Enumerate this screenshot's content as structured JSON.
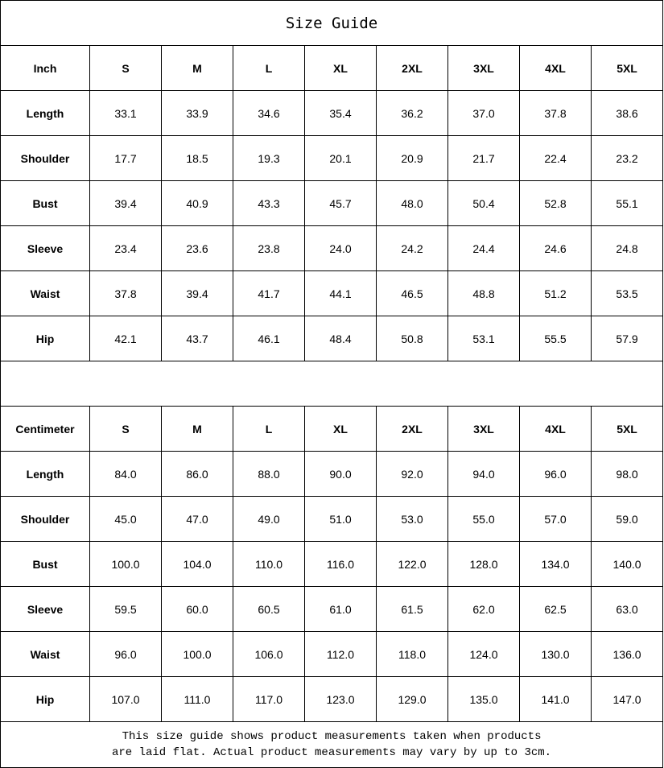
{
  "title": "Size Guide",
  "sizes": [
    "S",
    "M",
    "L",
    "XL",
    "2XL",
    "3XL",
    "4XL",
    "5XL"
  ],
  "tables": [
    {
      "unit": "Inch",
      "rows": [
        {
          "label": "Length",
          "values": [
            "33.1",
            "33.9",
            "34.6",
            "35.4",
            "36.2",
            "37.0",
            "37.8",
            "38.6"
          ]
        },
        {
          "label": "Shoulder",
          "values": [
            "17.7",
            "18.5",
            "19.3",
            "20.1",
            "20.9",
            "21.7",
            "22.4",
            "23.2"
          ]
        },
        {
          "label": "Bust",
          "values": [
            "39.4",
            "40.9",
            "43.3",
            "45.7",
            "48.0",
            "50.4",
            "52.8",
            "55.1"
          ]
        },
        {
          "label": "Sleeve",
          "values": [
            "23.4",
            "23.6",
            "23.8",
            "24.0",
            "24.2",
            "24.4",
            "24.6",
            "24.8"
          ]
        },
        {
          "label": "Waist",
          "values": [
            "37.8",
            "39.4",
            "41.7",
            "44.1",
            "46.5",
            "48.8",
            "51.2",
            "53.5"
          ]
        },
        {
          "label": "Hip",
          "values": [
            "42.1",
            "43.7",
            "46.1",
            "48.4",
            "50.8",
            "53.1",
            "55.5",
            "57.9"
          ]
        }
      ]
    },
    {
      "unit": "Centimeter",
      "rows": [
        {
          "label": "Length",
          "values": [
            "84.0",
            "86.0",
            "88.0",
            "90.0",
            "92.0",
            "94.0",
            "96.0",
            "98.0"
          ]
        },
        {
          "label": "Shoulder",
          "values": [
            "45.0",
            "47.0",
            "49.0",
            "51.0",
            "53.0",
            "55.0",
            "57.0",
            "59.0"
          ]
        },
        {
          "label": "Bust",
          "values": [
            "100.0",
            "104.0",
            "110.0",
            "116.0",
            "122.0",
            "128.0",
            "134.0",
            "140.0"
          ]
        },
        {
          "label": "Sleeve",
          "values": [
            "59.5",
            "60.0",
            "60.5",
            "61.0",
            "61.5",
            "62.0",
            "62.5",
            "63.0"
          ]
        },
        {
          "label": "Waist",
          "values": [
            "96.0",
            "100.0",
            "106.0",
            "112.0",
            "118.0",
            "124.0",
            "130.0",
            "136.0"
          ]
        },
        {
          "label": "Hip",
          "values": [
            "107.0",
            "111.0",
            "117.0",
            "123.0",
            "129.0",
            "135.0",
            "141.0",
            "147.0"
          ]
        }
      ]
    }
  ],
  "note": {
    "line1": "This size guide shows product measurements taken when products",
    "line2": "are laid flat. Actual product measurements may vary by up to 3cm."
  }
}
